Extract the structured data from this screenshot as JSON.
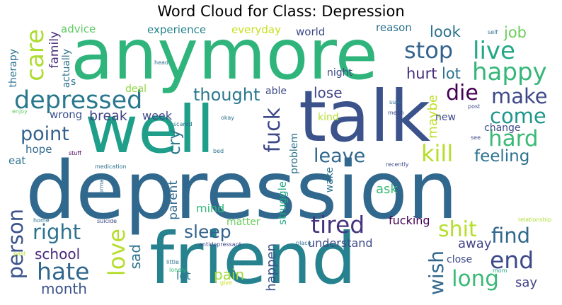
{
  "title": "Word Cloud for Class: Depression",
  "words": [
    {
      "text": "depression",
      "color": "#31688e"
    },
    {
      "text": "friend",
      "color": "#26828e"
    },
    {
      "text": "anymore",
      "color": "#2fb47c"
    },
    {
      "text": "talk",
      "color": "#3b528b"
    },
    {
      "text": "well",
      "color": "#1f9e89"
    },
    {
      "text": "depressed",
      "color": "#2a788e"
    },
    {
      "text": "care",
      "color": "#addc30"
    },
    {
      "text": "stop",
      "color": "#33638d"
    },
    {
      "text": "live",
      "color": "#22a884"
    },
    {
      "text": "happy",
      "color": "#35b779"
    },
    {
      "text": "die",
      "color": "#440154"
    },
    {
      "text": "make",
      "color": "#3e4989"
    },
    {
      "text": "come",
      "color": "#1f968b"
    },
    {
      "text": "hard",
      "color": "#3aba76"
    },
    {
      "text": "kill",
      "color": "#b5de2b"
    },
    {
      "text": "feeling",
      "color": "#2c728e"
    },
    {
      "text": "leave",
      "color": "#31688e"
    },
    {
      "text": "fuck",
      "color": "#3e4989"
    },
    {
      "text": "thought",
      "color": "#2a788e"
    },
    {
      "text": "point",
      "color": "#33638d"
    },
    {
      "text": "cry",
      "color": "#2a788e"
    },
    {
      "text": "break",
      "color": "#414487"
    },
    {
      "text": "week",
      "color": "#3e4989"
    },
    {
      "text": "lose",
      "color": "#414487"
    },
    {
      "text": "hurt",
      "color": "#472d7b"
    },
    {
      "text": "lot",
      "color": "#2c728e"
    },
    {
      "text": "look",
      "color": "#2c728e"
    },
    {
      "text": "job",
      "color": "#6ccd5a"
    },
    {
      "text": "maybe",
      "color": "#bddf26"
    },
    {
      "text": "family",
      "color": "#472d7b"
    },
    {
      "text": "advice",
      "color": "#5ec962"
    },
    {
      "text": "experience",
      "color": "#26828e"
    },
    {
      "text": "everyday",
      "color": "#c8e020"
    },
    {
      "text": "world",
      "color": "#3e4989"
    },
    {
      "text": "reason",
      "color": "#2c728e"
    },
    {
      "text": "actually",
      "color": "#2c728e"
    },
    {
      "text": "therapy",
      "color": "#2c728e"
    },
    {
      "text": "night",
      "color": "#3e4989"
    },
    {
      "text": "able",
      "color": "#3e4989"
    },
    {
      "text": "deal",
      "color": "#8fd744"
    },
    {
      "text": "wrong",
      "color": "#3b528b"
    },
    {
      "text": "hope",
      "color": "#31688e"
    },
    {
      "text": "eat",
      "color": "#2c728e"
    },
    {
      "text": "kind",
      "color": "#b5de2b"
    },
    {
      "text": "new",
      "color": "#3e4989"
    },
    {
      "text": "change",
      "color": "#3e4989"
    },
    {
      "text": "right",
      "color": "#2c728e"
    },
    {
      "text": "person",
      "color": "#3b528b"
    },
    {
      "text": "hate",
      "color": "#31688e"
    },
    {
      "text": "love",
      "color": "#b5de2b"
    },
    {
      "text": "sleep",
      "color": "#33638d"
    },
    {
      "text": "tired",
      "color": "#46337e"
    },
    {
      "text": "wish",
      "color": "#31688e"
    },
    {
      "text": "shit",
      "color": "#b5de2b"
    },
    {
      "text": "find",
      "color": "#31688e"
    },
    {
      "text": "end",
      "color": "#3e4989"
    },
    {
      "text": "long",
      "color": "#3aba76"
    },
    {
      "text": "say",
      "color": "#414487"
    },
    {
      "text": "school",
      "color": "#482878"
    },
    {
      "text": "month",
      "color": "#3b528b"
    },
    {
      "text": "sad",
      "color": "#2c728e"
    },
    {
      "text": "pain",
      "color": "#a0da39"
    },
    {
      "text": "let",
      "color": "#2a788e"
    },
    {
      "text": "mind",
      "color": "#35b779"
    },
    {
      "text": "matter",
      "color": "#6ccd5a"
    },
    {
      "text": "parent",
      "color": "#31688e"
    },
    {
      "text": "happen",
      "color": "#3b528b"
    },
    {
      "text": "struggle",
      "color": "#22a884"
    },
    {
      "text": "problem",
      "color": "#2c728e"
    },
    {
      "text": "wake",
      "color": "#2c728e"
    },
    {
      "text": "ask",
      "color": "#3aba76"
    },
    {
      "text": "understand",
      "color": "#3e4989"
    },
    {
      "text": "fucking",
      "color": "#440154"
    },
    {
      "text": "away",
      "color": "#414487"
    },
    {
      "text": "close",
      "color": "#3e4989"
    },
    {
      "text": "s",
      "color": "#2c728e"
    },
    {
      "text": "self",
      "color": "#2c728e"
    },
    {
      "text": "head",
      "color": "#2c728e"
    },
    {
      "text": "enjoy",
      "color": "#5ec962"
    },
    {
      "text": "scared",
      "color": "#2c728e"
    },
    {
      "text": "okay",
      "color": "#2c728e"
    },
    {
      "text": "sure",
      "color": "#2c728e"
    },
    {
      "text": "mean",
      "color": "#3e4989"
    },
    {
      "text": "post",
      "color": "#3e4989"
    },
    {
      "text": "see",
      "color": "#3e4989"
    },
    {
      "text": "bed",
      "color": "#2c728e"
    },
    {
      "text": "stuff",
      "color": "#440154"
    },
    {
      "text": "recently",
      "color": "#3e4989"
    },
    {
      "text": "medication",
      "color": "#2c728e"
    },
    {
      "text": "normal",
      "color": "#2c728e"
    },
    {
      "text": "home",
      "color": "#2c728e"
    },
    {
      "text": "suicide",
      "color": "#3e4989"
    },
    {
      "text": "antidepressant",
      "color": "#3e4989"
    },
    {
      "text": "place",
      "color": "#2c728e"
    },
    {
      "text": "little",
      "color": "#2c728e"
    },
    {
      "text": "lonely",
      "color": "#35b779"
    },
    {
      "text": "give",
      "color": "#c8e020"
    },
    {
      "text": "mom",
      "color": "#22a884"
    },
    {
      "text": "past",
      "color": "#b5de2b"
    },
    {
      "text": "relationship",
      "color": "#addc30"
    }
  ]
}
